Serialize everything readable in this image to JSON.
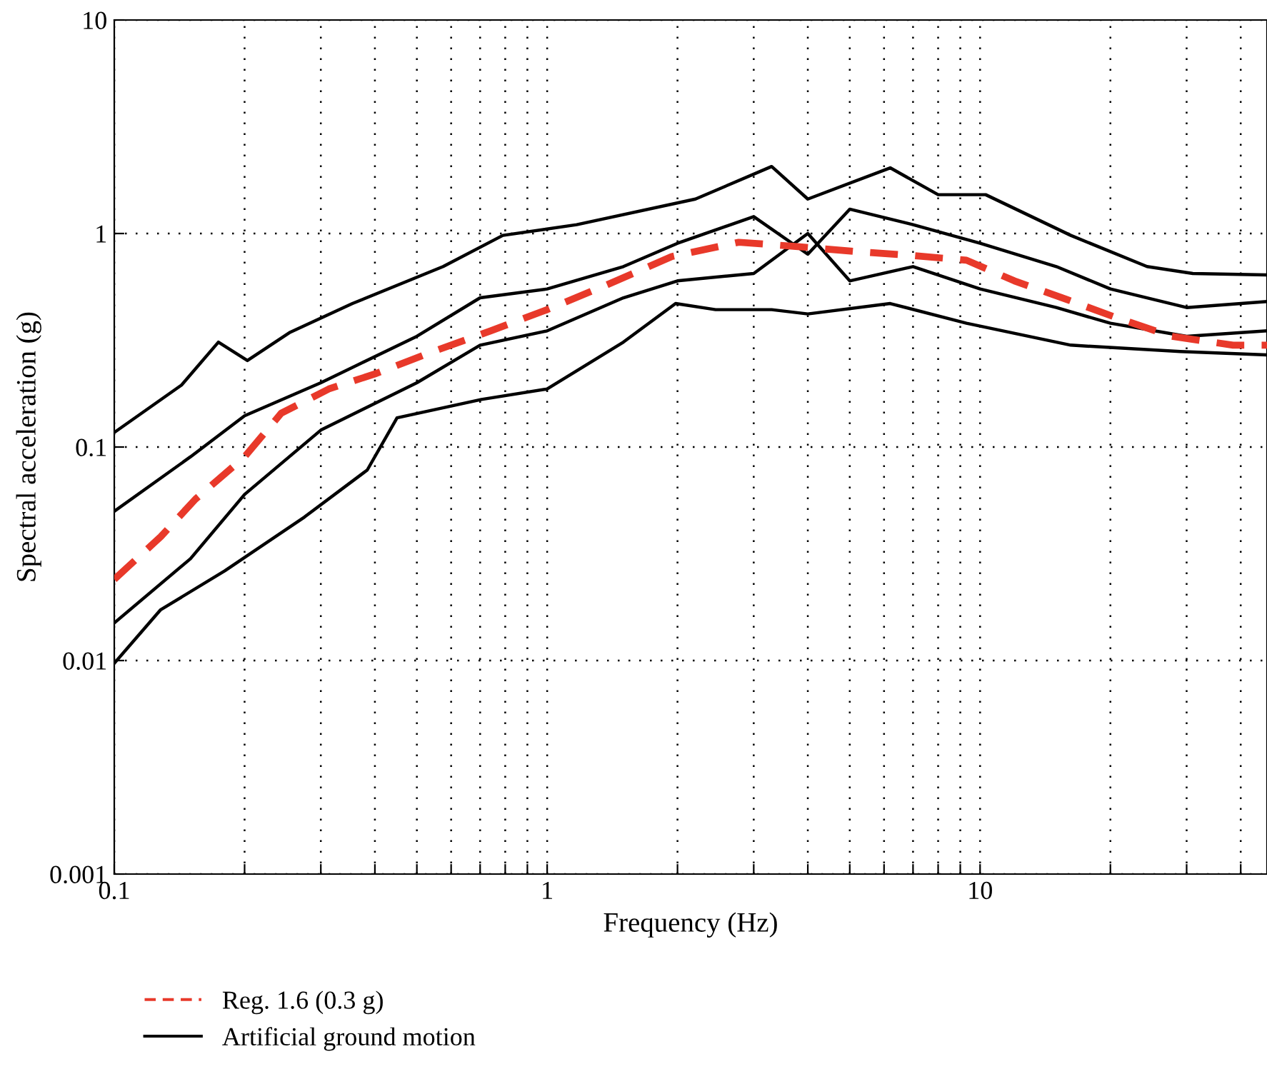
{
  "chart_data": {
    "type": "line",
    "xlabel": "Frequency (Hz)",
    "ylabel": "Spectral acceleration (g)",
    "log": "xy",
    "grid": true,
    "legend": "bottom left",
    "xlim": [
      0.1,
      46
    ],
    "ylim": [
      0.001,
      10
    ],
    "xticks": [
      0.1,
      {
        "value": 0.2,
        "label": null
      },
      {
        "value": 0.3,
        "label": null
      },
      {
        "value": 0.4,
        "label": null
      },
      {
        "value": 0.5,
        "label": null
      },
      {
        "value": 0.6,
        "label": null
      },
      {
        "value": 0.7,
        "label": null
      },
      {
        "value": 0.8,
        "label": null
      },
      {
        "value": 0.9,
        "label": null
      },
      1,
      {
        "value": 2,
        "label": null
      },
      {
        "value": 3,
        "label": null
      },
      {
        "value": 4,
        "label": null
      },
      {
        "value": 5,
        "label": null
      },
      {
        "value": 6,
        "label": null
      },
      {
        "value": 7,
        "label": null
      },
      {
        "value": 8,
        "label": null
      },
      {
        "value": 9,
        "label": null
      },
      10,
      {
        "value": 20,
        "label": null
      },
      {
        "value": 30,
        "label": null
      },
      {
        "value": 40,
        "label": null
      }
    ],
    "yticks": [
      0.001,
      0.01,
      0.1,
      1,
      10
    ],
    "series": [
      {
        "name": "Artificial ground motion",
        "color": "#000000",
        "line_style": "solid",
        "x": [
          0.1,
          0.143,
          0.174,
          0.203,
          0.255,
          0.355,
          0.575,
          0.79,
          1.17,
          2.2,
          3.3,
          4.0,
          6.2,
          8.0,
          10.3,
          16.2,
          24.3,
          31,
          46
        ],
        "values": [
          0.117,
          0.195,
          0.31,
          0.254,
          0.345,
          0.47,
          0.7,
          0.98,
          1.1,
          1.45,
          2.06,
          1.45,
          2.03,
          1.52,
          1.52,
          0.98,
          0.7,
          0.65,
          0.64
        ]
      },
      {
        "color": "#000000",
        "line_style": "solid",
        "x": [
          0.1,
          0.128,
          0.18,
          0.275,
          0.384,
          0.45,
          0.705,
          1,
          1.5,
          1.98,
          2.45,
          3.3,
          4.0,
          6.2,
          9.3,
          16.2,
          29,
          46
        ],
        "values": [
          0.0097,
          0.0173,
          0.0263,
          0.047,
          0.078,
          0.137,
          0.167,
          0.187,
          0.31,
          0.47,
          0.44,
          0.44,
          0.42,
          0.47,
          0.38,
          0.3,
          0.28,
          0.27
        ]
      },
      {
        "color": "#000000",
        "line_style": "solid",
        "x": [
          0.1,
          0.15,
          0.2,
          0.3,
          0.5,
          0.7,
          1,
          1.5,
          2,
          3,
          4,
          5,
          7,
          10,
          15,
          20,
          30,
          46
        ],
        "values": [
          0.05,
          0.09,
          0.14,
          0.2,
          0.33,
          0.5,
          0.55,
          0.7,
          0.9,
          1.2,
          0.8,
          1.3,
          1.1,
          0.9,
          0.7,
          0.55,
          0.45,
          0.48
        ]
      },
      {
        "color": "#000000",
        "line_style": "solid",
        "x": [
          0.1,
          0.15,
          0.2,
          0.3,
          0.5,
          0.7,
          1,
          1.5,
          2,
          3,
          4,
          5,
          7,
          10,
          15,
          20,
          30,
          46
        ],
        "values": [
          0.015,
          0.03,
          0.06,
          0.12,
          0.2,
          0.3,
          0.35,
          0.5,
          0.6,
          0.65,
          1.0,
          0.6,
          0.7,
          0.55,
          0.45,
          0.38,
          0.33,
          0.35
        ]
      },
      {
        "name": "Reg. 1.6 (0.3 g)",
        "color": "#e8392a",
        "line_style": "dashed",
        "x": [
          0.1,
          0.128,
          0.154,
          0.2,
          0.243,
          0.313,
          0.4,
          0.545,
          0.74,
          1,
          1.36,
          1.94,
          2.77,
          3.75,
          5.3,
          6.9,
          9.3,
          12.0,
          15.9,
          20.9,
          27.7,
          38.4,
          46
        ],
        "values": [
          0.024,
          0.038,
          0.057,
          0.09,
          0.144,
          0.187,
          0.22,
          0.28,
          0.35,
          0.44,
          0.57,
          0.78,
          0.91,
          0.87,
          0.82,
          0.79,
          0.75,
          0.6,
          0.49,
          0.4,
          0.33,
          0.3,
          0.3
        ]
      }
    ]
  }
}
